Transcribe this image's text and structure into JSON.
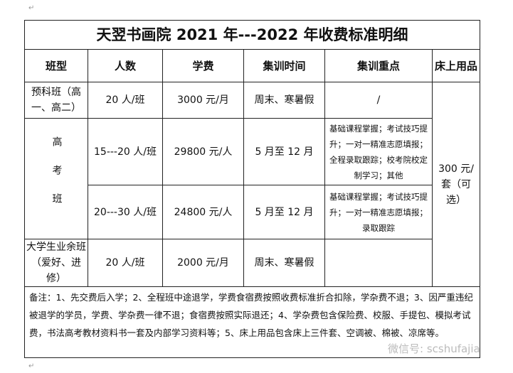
{
  "title": "天翌书画院 2021 年---2022 年收费标准明细",
  "headers": [
    "班型",
    "人数",
    "学费",
    "集训时间",
    "集训重点",
    "床上用品"
  ],
  "rows": [
    {
      "type": "预科班（高一、高二）",
      "count": "20 人/班",
      "fee": "3000 元/月",
      "time": "周末、寒暑假",
      "focus": "/"
    },
    {
      "type": "高考班",
      "count": "15---20 人/班",
      "fee": "29800 元/人",
      "time": "5 月至 12 月",
      "focus": "基础课程掌握；考试技巧提升；一对一精准志愿填报；全程录取跟踪；校考院校定制学习；其他"
    },
    {
      "count": "20---30 人/班",
      "fee": "24800 元/人",
      "time": "5 月至 12 月",
      "focus": "基础课程掌握；考试技巧提升；一对一精准志愿填报；录取跟踪"
    },
    {
      "type": "大学生业余班（爱好、进修）",
      "count": "20 人/班",
      "fee": "2000 元/月",
      "time": "周末、寒暑假",
      "focus": ""
    }
  ],
  "bedding": "300 元/套（可选）",
  "notes": "备注：1、先交费后入学；2、全程班中途退学，学费食宿费按照收费标准折合扣除，学杂费不退；3、因严重违纪被退学的学员，学费、学杂费一律不退；食宿费按照实际退还；4、学杂费包含保险费、校服、手提包、模拟考试费，书法高考教材资料书一套及内部学习资料等；5、床上用品包含床上三件套、空调被、棉被、凉席等。",
  "watermark": "微信号: scshufajia"
}
